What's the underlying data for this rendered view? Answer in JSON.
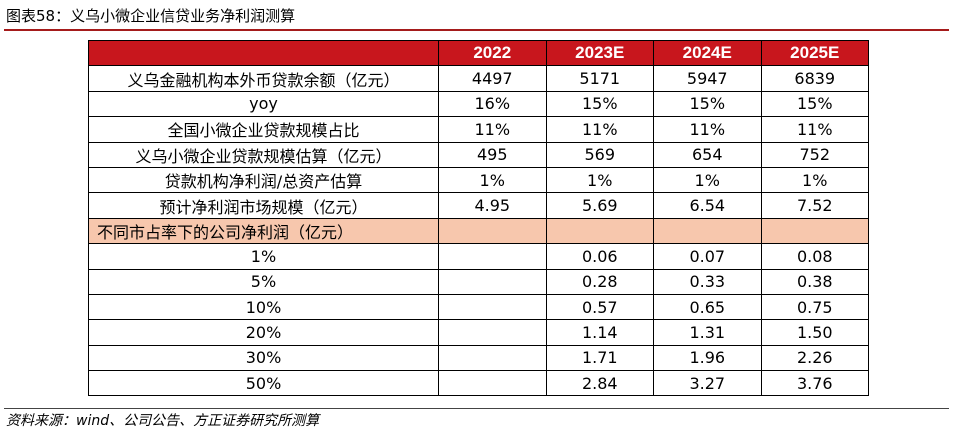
{
  "figure": {
    "title": "图表58：义乌小微企业信贷业务净利润测算",
    "source": "资料来源：wind、公司公告、方正证券研究所测算"
  },
  "table": {
    "columns": [
      "",
      "2022",
      "2023E",
      "2024E",
      "2025E"
    ],
    "rows": [
      {
        "label": "义乌金融机构本外币贷款余额（亿元）",
        "values": [
          "4497",
          "5171",
          "5947",
          "6839"
        ]
      },
      {
        "label": "yoy",
        "values": [
          "16%",
          "15%",
          "15%",
          "15%"
        ]
      },
      {
        "label": "全国小微企业贷款规模占比",
        "values": [
          "11%",
          "11%",
          "11%",
          "11%"
        ]
      },
      {
        "label": "义乌小微企业贷款规模估算（亿元）",
        "values": [
          "495",
          "569",
          "654",
          "752"
        ]
      },
      {
        "label": "贷款机构净利润/总资产估算",
        "values": [
          "1%",
          "1%",
          "1%",
          "1%"
        ]
      },
      {
        "label": "预计净利润市场规模（亿元）",
        "values": [
          "4.95",
          "5.69",
          "6.54",
          "7.52"
        ]
      },
      {
        "label": "不同市占率下的公司净利润（亿元）",
        "values": [
          "",
          "",
          "",
          ""
        ]
      },
      {
        "label": "1%",
        "values": [
          "",
          "0.06",
          "0.07",
          "0.08"
        ]
      },
      {
        "label": "5%",
        "values": [
          "",
          "0.28",
          "0.33",
          "0.38"
        ]
      },
      {
        "label": "10%",
        "values": [
          "",
          "0.57",
          "0.65",
          "0.75"
        ]
      },
      {
        "label": "20%",
        "values": [
          "",
          "1.14",
          "1.31",
          "1.50"
        ]
      },
      {
        "label": "30%",
        "values": [
          "",
          "1.71",
          "1.96",
          "2.26"
        ]
      },
      {
        "label": "50%",
        "values": [
          "",
          "2.84",
          "3.27",
          "3.76"
        ]
      }
    ]
  },
  "colors": {
    "header_bg": "#c8161d",
    "header_text": "#ffffff",
    "section_bg": "#f7c7ad",
    "title_rule": "#a51b1b"
  }
}
